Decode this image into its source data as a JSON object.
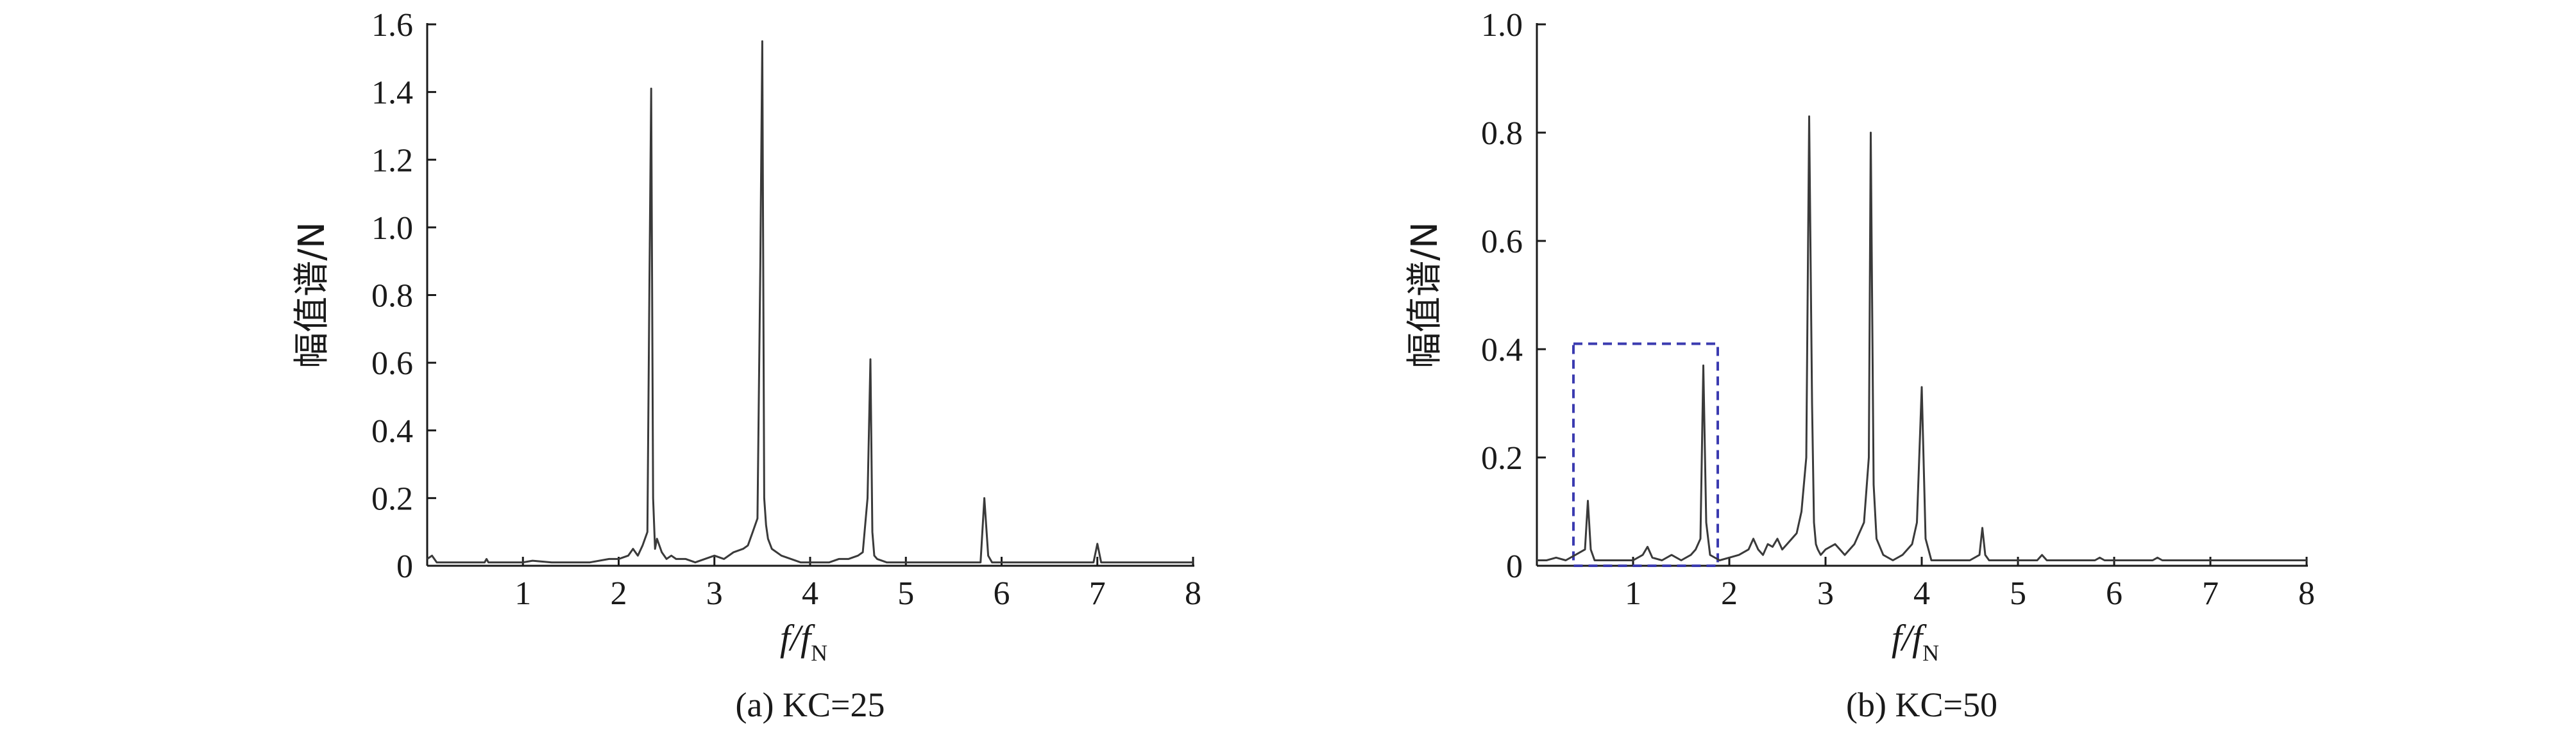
{
  "chart_data": [
    {
      "type": "line",
      "caption": "(a) KC=25",
      "ylabel": "幅值谱/N",
      "xlabel": {
        "main": "f/f",
        "sub": "N"
      },
      "xlim": [
        0,
        8
      ],
      "ylim": [
        0,
        1.6
      ],
      "xticks": [
        1,
        2,
        3,
        4,
        5,
        6,
        7,
        8
      ],
      "yticks": [
        0,
        0.2,
        0.4,
        0.6,
        0.8,
        1.0,
        1.2,
        1.4,
        1.6
      ],
      "ytick_labels": [
        "0",
        "0.2",
        "0.4",
        "0.6",
        "0.8",
        "1.0",
        "1.2",
        "1.4",
        "1.6"
      ],
      "origin_label": "0",
      "series": [
        {
          "x": [
            0,
            0.05,
            0.1,
            0.3,
            0.5,
            0.6,
            0.62,
            0.64,
            0.8,
            1.0,
            1.1,
            1.3,
            1.5,
            1.7,
            1.9,
            2.0,
            2.1,
            2.15,
            2.2,
            2.25,
            2.3,
            2.32,
            2.34,
            2.36,
            2.38,
            2.4,
            2.45,
            2.5,
            2.55,
            2.6,
            2.7,
            2.8,
            2.9,
            3.0,
            3.1,
            3.2,
            3.3,
            3.35,
            3.4,
            3.45,
            3.48,
            3.5,
            3.52,
            3.54,
            3.56,
            3.6,
            3.7,
            3.8,
            3.9,
            4.0,
            4.1,
            4.2,
            4.3,
            4.4,
            4.5,
            4.55,
            4.6,
            4.63,
            4.65,
            4.67,
            4.7,
            4.8,
            4.9,
            5.0,
            5.2,
            5.4,
            5.6,
            5.7,
            5.78,
            5.82,
            5.86,
            5.9,
            6.0,
            6.2,
            6.4,
            6.6,
            6.8,
            6.9,
            6.96,
            7.0,
            7.04,
            7.1,
            7.3,
            7.5,
            7.7,
            8.0
          ],
          "y": [
            0.02,
            0.03,
            0.01,
            0.01,
            0.01,
            0.01,
            0.02,
            0.01,
            0.01,
            0.01,
            0.015,
            0.01,
            0.01,
            0.01,
            0.02,
            0.02,
            0.03,
            0.05,
            0.03,
            0.06,
            0.1,
            0.8,
            1.41,
            0.2,
            0.05,
            0.08,
            0.04,
            0.02,
            0.03,
            0.02,
            0.02,
            0.01,
            0.02,
            0.03,
            0.02,
            0.04,
            0.05,
            0.06,
            0.1,
            0.14,
            0.9,
            1.55,
            0.2,
            0.12,
            0.08,
            0.05,
            0.03,
            0.02,
            0.01,
            0.01,
            0.01,
            0.01,
            0.02,
            0.02,
            0.03,
            0.04,
            0.2,
            0.61,
            0.1,
            0.03,
            0.02,
            0.01,
            0.01,
            0.01,
            0.01,
            0.01,
            0.01,
            0.01,
            0.01,
            0.2,
            0.03,
            0.01,
            0.01,
            0.01,
            0.01,
            0.01,
            0.01,
            0.01,
            0.01,
            0.065,
            0.01,
            0.01,
            0.01,
            0.01,
            0.01,
            0.01
          ]
        }
      ]
    },
    {
      "type": "line",
      "caption": "(b) KC=50",
      "ylabel": "幅值谱/N",
      "xlabel": {
        "main": "f/f",
        "sub": "N"
      },
      "xlim": [
        0,
        8
      ],
      "ylim": [
        0,
        1.0
      ],
      "xticks": [
        1,
        2,
        3,
        4,
        5,
        6,
        7,
        8
      ],
      "yticks": [
        0,
        0.2,
        0.4,
        0.6,
        0.8,
        1.0
      ],
      "ytick_labels": [
        "0",
        "0.2",
        "0.4",
        "0.6",
        "0.8",
        "1.0"
      ],
      "origin_label": "0",
      "highlight_box": {
        "x": [
          0.38,
          1.88
        ],
        "y": [
          0,
          0.41
        ]
      },
      "series": [
        {
          "x": [
            0,
            0.1,
            0.2,
            0.3,
            0.4,
            0.5,
            0.53,
            0.56,
            0.6,
            0.7,
            0.8,
            0.9,
            1.0,
            1.1,
            1.15,
            1.2,
            1.3,
            1.4,
            1.5,
            1.6,
            1.65,
            1.7,
            1.73,
            1.76,
            1.8,
            1.9,
            2.0,
            2.1,
            2.2,
            2.25,
            2.3,
            2.35,
            2.4,
            2.45,
            2.5,
            2.55,
            2.6,
            2.7,
            2.75,
            2.8,
            2.83,
            2.86,
            2.88,
            2.9,
            2.92,
            2.95,
            3.0,
            3.1,
            3.15,
            3.2,
            3.3,
            3.4,
            3.45,
            3.47,
            3.5,
            3.53,
            3.6,
            3.7,
            3.8,
            3.9,
            3.95,
            4.0,
            4.04,
            4.1,
            4.2,
            4.3,
            4.4,
            4.5,
            4.6,
            4.63,
            4.66,
            4.7,
            4.8,
            5.0,
            5.2,
            5.25,
            5.3,
            5.5,
            5.8,
            5.85,
            5.9,
            6.1,
            6.4,
            6.45,
            6.5,
            6.8,
            7.0,
            7.3,
            7.6,
            8.0
          ],
          "y": [
            0.01,
            0.01,
            0.015,
            0.01,
            0.02,
            0.03,
            0.12,
            0.03,
            0.01,
            0.01,
            0.01,
            0.01,
            0.01,
            0.02,
            0.035,
            0.015,
            0.01,
            0.02,
            0.01,
            0.02,
            0.03,
            0.05,
            0.37,
            0.08,
            0.02,
            0.01,
            0.015,
            0.02,
            0.03,
            0.05,
            0.03,
            0.02,
            0.04,
            0.035,
            0.05,
            0.03,
            0.04,
            0.06,
            0.1,
            0.2,
            0.83,
            0.3,
            0.08,
            0.04,
            0.03,
            0.02,
            0.03,
            0.04,
            0.03,
            0.02,
            0.04,
            0.08,
            0.2,
            0.8,
            0.15,
            0.05,
            0.02,
            0.01,
            0.02,
            0.04,
            0.08,
            0.33,
            0.05,
            0.01,
            0.01,
            0.01,
            0.01,
            0.01,
            0.02,
            0.07,
            0.02,
            0.01,
            0.01,
            0.01,
            0.01,
            0.02,
            0.01,
            0.01,
            0.01,
            0.015,
            0.01,
            0.01,
            0.01,
            0.015,
            0.01,
            0.01,
            0.01,
            0.01,
            0.01,
            0.01
          ]
        }
      ]
    }
  ]
}
